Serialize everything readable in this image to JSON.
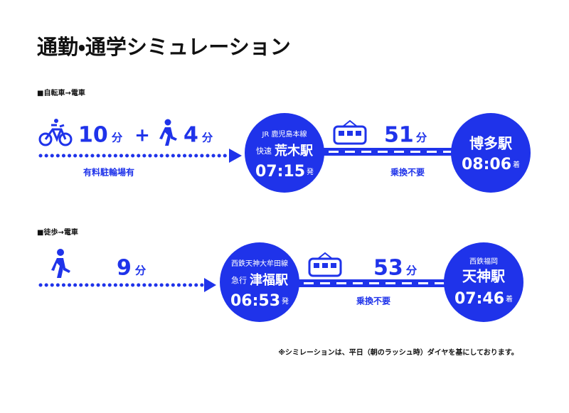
{
  "header": {
    "title": "通勤・通学シミュレーション"
  },
  "routes": [
    {
      "label": "■自転車→電車",
      "legs": [
        {
          "minutes": "10",
          "unit": "分"
        },
        {
          "minutes": "4",
          "unit": "分"
        }
      ],
      "plus": "+",
      "note": "有料駐輪場有",
      "departure": {
        "line": "JR 鹿児島本線",
        "service": "快速",
        "station": "荒木駅",
        "time": "07:15",
        "time_suffix": "発"
      },
      "train": {
        "minutes": "51",
        "unit": "分",
        "note": "乗換不要"
      },
      "arrival": {
        "station": "博多駅",
        "time": "08:06",
        "time_suffix": "着"
      }
    },
    {
      "label": "■徒歩→電車",
      "legs": [
        {
          "minutes": "9",
          "unit": "分"
        }
      ],
      "departure": {
        "line": "西鉄天神大牟田線",
        "service": "急行",
        "station": "津福駅",
        "time": "06:53",
        "time_suffix": "発"
      },
      "train": {
        "minutes": "53",
        "unit": "分",
        "note": "乗換不要"
      },
      "arrival": {
        "line": "西鉄福岡",
        "station": "天神駅",
        "time": "07:46",
        "time_suffix": "着"
      }
    }
  ],
  "footnote": "※シミレーションは、平日（朝のラッシュ時）ダイヤを基にしております。"
}
